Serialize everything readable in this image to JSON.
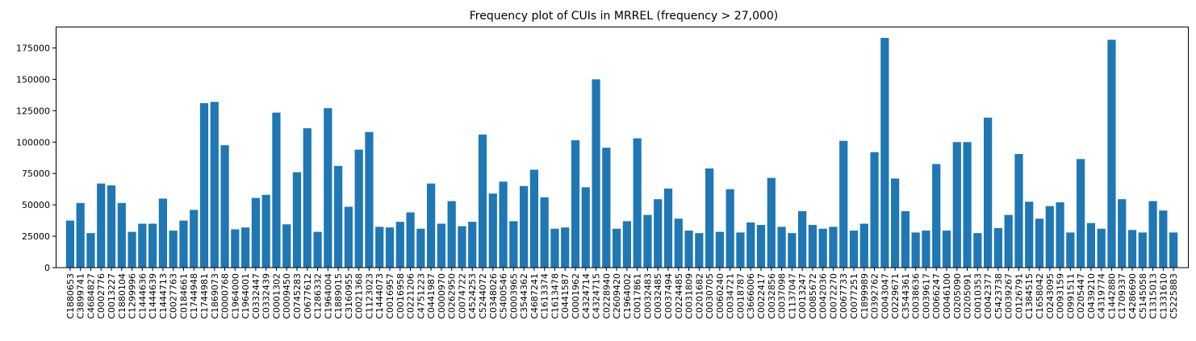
{
  "chart_data": {
    "type": "bar",
    "title": "Frequency plot of CUIs in MRREL (frequency > 27,000)",
    "xlabel": "",
    "ylabel": "",
    "ylim": [
      0,
      192000
    ],
    "yticks": [
      0,
      25000,
      50000,
      75000,
      100000,
      125000,
      150000,
      175000
    ],
    "grid": false,
    "bar_color": "#1f77b4",
    "categories": [
      "C1880653",
      "C3899741",
      "C4684827",
      "C0002776",
      "C0013227",
      "C1880104",
      "C1299996",
      "C1444636",
      "C1444639",
      "C1444713",
      "C0027763",
      "C0184661",
      "C1744948",
      "C1744981",
      "C1869073",
      "C0000768",
      "C1964000",
      "C1964001",
      "C0332447",
      "C0332439",
      "C0001302",
      "C0009450",
      "C0745283",
      "C0677612",
      "C1286332",
      "C1964004",
      "C1889015",
      "C3160955",
      "C0021368",
      "C1123023",
      "C1444073",
      "C0016957",
      "C0016958",
      "C0221206",
      "C4751223",
      "C0441987",
      "C0000970",
      "C0262950",
      "C0074722",
      "C4524253",
      "C5244072",
      "C0348026",
      "C5400546",
      "C0003965",
      "C3544362",
      "C4687241",
      "C1613374",
      "C1613478",
      "C0441587",
      "C0001962",
      "C4324714",
      "C4324715",
      "C0228940",
      "C2609420",
      "C1964002",
      "C0017861",
      "C0032483",
      "C0032485",
      "C0037494",
      "C0224485",
      "C0031809",
      "C0201682",
      "C0030705",
      "C0060240",
      "C0034721",
      "C0018787",
      "C3666006",
      "C0022417",
      "C0032856",
      "C0037098",
      "C1137047",
      "C0013247",
      "C0085672",
      "C0042036",
      "C0072270",
      "C0067733",
      "C0077251",
      "C1899989",
      "C0392762",
      "C0043047",
      "C0229671",
      "C3544361",
      "C0038636",
      "C0039617",
      "C0066247",
      "C0046100",
      "C0205090",
      "C0205091",
      "C0010353",
      "C0042377",
      "C5423738",
      "C0039267",
      "C0126791",
      "C1384515",
      "C1658042",
      "C0243095",
      "C0093159",
      "C0991511",
      "C0205447",
      "C0439210",
      "C4319774",
      "C1442880",
      "C1709337",
      "C4286690",
      "C5145058",
      "C1315013",
      "C1331610",
      "C5225883"
    ],
    "values": [
      37500,
      51500,
      27500,
      67000,
      65500,
      51500,
      28500,
      35000,
      35000,
      55000,
      29500,
      37500,
      46000,
      131000,
      132000,
      97500,
      30500,
      32000,
      55500,
      58000,
      123500,
      34500,
      76000,
      111000,
      28500,
      127000,
      81000,
      48500,
      94000,
      108000,
      32500,
      32000,
      36500,
      44000,
      31000,
      67000,
      35000,
      53000,
      33000,
      36500,
      106000,
      59000,
      68500,
      37000,
      65000,
      78000,
      56000,
      31000,
      32000,
      101500,
      64000,
      150000,
      95500,
      31000,
      37000,
      103000,
      42000,
      54500,
      63000,
      39000,
      29500,
      27500,
      79000,
      28500,
      62500,
      28000,
      36000,
      34000,
      71500,
      32500,
      27500,
      45000,
      34000,
      31000,
      32500,
      101000,
      29500,
      35000,
      92000,
      183000,
      71000,
      45000,
      28000,
      29500,
      82500,
      29500,
      100000,
      100000,
      27500,
      119500,
      31500,
      42000,
      90500,
      52500,
      39000,
      49000,
      52000,
      28000,
      86500,
      35500,
      31000,
      181500,
      54500,
      30000,
      28000,
      53000,
      45500,
      28000
    ]
  }
}
